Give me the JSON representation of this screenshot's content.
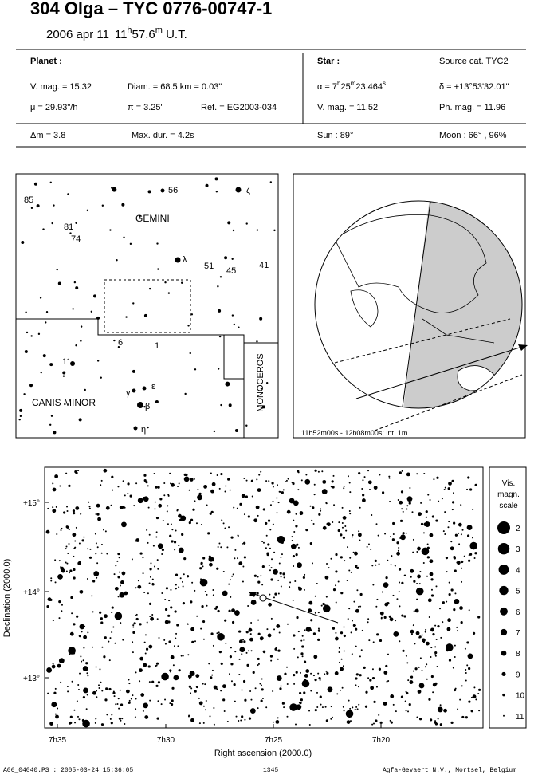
{
  "header": {
    "title": "304 Olga  –  TYC 0776-00747-1",
    "date": "2006 apr 11",
    "time": [
      "11",
      "h",
      "57.6",
      "m",
      " U.T."
    ]
  },
  "planet": {
    "heading": "Planet :",
    "vmag": "V. mag. = 15.32",
    "diam": "Diam. = 68.5 km = 0.03\"",
    "mu": "μ = 29.93\"/h",
    "pi": "π = 3.25\"",
    "ref": "Ref. = EG2003-034",
    "dm": "Δm = 3.8",
    "maxdur": "Max. dur. = 4.2s"
  },
  "star": {
    "heading": "Star :",
    "source": "Source cat. TYC2",
    "alpha": [
      "α = 7",
      "h",
      "25",
      "m",
      "23.464",
      "s"
    ],
    "delta": "δ = +13°53'32.01\"",
    "vmag": "V. mag. = 11.52",
    "phmag": "Ph. mag. = 11.96",
    "sun": "Sun : 89°",
    "moon": "Moon : 66° , 96%"
  },
  "finder": {
    "labels": [
      "85",
      "81",
      "74",
      "56",
      "ζ",
      "GEMINI",
      "λ",
      "51",
      "45",
      "41",
      "6",
      "1",
      "11",
      "γ",
      "ε",
      "β",
      "η",
      "CANIS MINOR"
    ],
    "monoceros": "MONOCEROS"
  },
  "globe": {
    "caption": "11h52m00s - 12h08m00s; int. 1m"
  },
  "chart": {
    "ylabel": "Declination (2000.0)",
    "xlabel": "Right ascension (2000.0)",
    "yticks": [
      "+15°",
      "+14°",
      "+13°"
    ],
    "xticks": [
      "7h35",
      "7h30",
      "7h25",
      "7h20"
    ]
  },
  "scale": {
    "title": [
      "Vis.",
      "magn.",
      "scale"
    ],
    "mags": [
      "2",
      "3",
      "4",
      "5",
      "6",
      "7",
      "8",
      "9",
      "10",
      "11"
    ]
  },
  "footer": {
    "file": "A06_04040.PS : 2005-03-24 15:36:05",
    "page": "1345",
    "credit": "Agfa-Gevaert N.V., Mortsel, Belgium"
  }
}
